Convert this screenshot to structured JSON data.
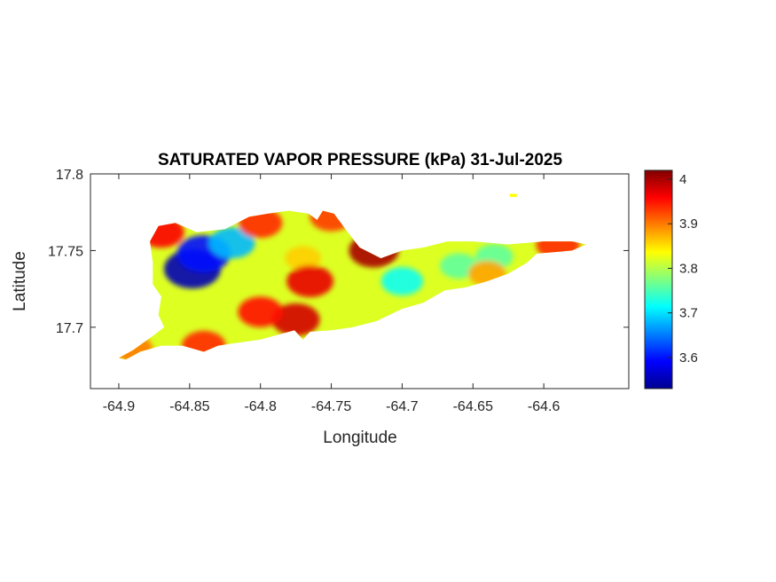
{
  "chart_data": {
    "type": "heatmap",
    "title": "SATURATED VAPOR PRESSURE (kPa) 31-Jul-2025",
    "xlabel": "Longitude",
    "ylabel": "Latitude",
    "xlim": [
      -64.92,
      -64.54
    ],
    "ylim": [
      17.66,
      17.8
    ],
    "x_ticks": [
      -64.9,
      -64.85,
      -64.8,
      -64.75,
      -64.7,
      -64.65,
      -64.6
    ],
    "x_tick_labels": [
      "-64.9",
      "-64.85",
      "-64.8",
      "-64.75",
      "-64.7",
      "-64.65",
      "-64.6"
    ],
    "y_ticks": [
      17.7,
      17.75,
      17.8
    ],
    "y_tick_labels": [
      "17.7",
      "17.75",
      "17.8"
    ],
    "colorbar": {
      "colormap": "jet",
      "range": [
        3.53,
        4.02
      ],
      "ticks": [
        3.6,
        3.7,
        3.8,
        3.9,
        4.0
      ],
      "tick_labels": [
        "3.6",
        "3.7",
        "3.8",
        "3.9",
        "4"
      ]
    },
    "island_outline": [
      [
        -64.9,
        17.68
      ],
      [
        -64.89,
        17.685
      ],
      [
        -64.875,
        17.695
      ],
      [
        -64.868,
        17.7
      ],
      [
        -64.872,
        17.708
      ],
      [
        -64.87,
        17.72
      ],
      [
        -64.876,
        17.728
      ],
      [
        -64.876,
        17.742
      ],
      [
        -64.878,
        17.756
      ],
      [
        -64.872,
        17.766
      ],
      [
        -64.86,
        17.768
      ],
      [
        -64.845,
        17.762
      ],
      [
        -64.825,
        17.764
      ],
      [
        -64.808,
        17.772
      ],
      [
        -64.795,
        17.774
      ],
      [
        -64.78,
        17.776
      ],
      [
        -64.766,
        17.774
      ],
      [
        -64.76,
        17.77
      ],
      [
        -64.756,
        17.776
      ],
      [
        -64.748,
        17.774
      ],
      [
        -64.74,
        17.764
      ],
      [
        -64.73,
        17.752
      ],
      [
        -64.715,
        17.745
      ],
      [
        -64.7,
        17.75
      ],
      [
        -64.685,
        17.752
      ],
      [
        -64.668,
        17.756
      ],
      [
        -64.65,
        17.756
      ],
      [
        -64.625,
        17.754
      ],
      [
        -64.6,
        17.756
      ],
      [
        -64.58,
        17.756
      ],
      [
        -64.57,
        17.754
      ],
      [
        -64.58,
        17.75
      ],
      [
        -64.605,
        17.748
      ],
      [
        -64.612,
        17.742
      ],
      [
        -64.625,
        17.735
      ],
      [
        -64.64,
        17.73
      ],
      [
        -64.655,
        17.726
      ],
      [
        -64.67,
        17.724
      ],
      [
        -64.685,
        17.716
      ],
      [
        -64.7,
        17.712
      ],
      [
        -64.718,
        17.704
      ],
      [
        -64.735,
        17.7
      ],
      [
        -64.75,
        17.698
      ],
      [
        -64.765,
        17.697
      ],
      [
        -64.77,
        17.692
      ],
      [
        -64.776,
        17.698
      ],
      [
        -64.788,
        17.695
      ],
      [
        -64.8,
        17.692
      ],
      [
        -64.815,
        17.69
      ],
      [
        -64.83,
        17.688
      ],
      [
        -64.84,
        17.684
      ],
      [
        -64.855,
        17.688
      ],
      [
        -64.87,
        17.688
      ],
      [
        -64.885,
        17.684
      ],
      [
        -64.895,
        17.679
      ]
    ],
    "islet_outline": [
      [
        -64.624,
        17.787
      ],
      [
        -64.619,
        17.787
      ],
      [
        -64.619,
        17.785
      ],
      [
        -64.624,
        17.785
      ]
    ],
    "field_peaks": [
      {
        "lon": -64.848,
        "lat": 17.738,
        "value": 3.55
      },
      {
        "lon": -64.84,
        "lat": 17.748,
        "value": 3.6
      },
      {
        "lon": -64.82,
        "lat": 17.755,
        "value": 3.68
      },
      {
        "lon": -64.7,
        "lat": 17.73,
        "value": 3.72
      },
      {
        "lon": -64.66,
        "lat": 17.74,
        "value": 3.76
      },
      {
        "lon": -64.635,
        "lat": 17.746,
        "value": 3.76
      },
      {
        "lon": -64.77,
        "lat": 17.745,
        "value": 3.86
      },
      {
        "lon": -64.775,
        "lat": 17.705,
        "value": 3.98
      },
      {
        "lon": -64.8,
        "lat": 17.71,
        "value": 3.95
      },
      {
        "lon": -64.765,
        "lat": 17.73,
        "value": 3.97
      },
      {
        "lon": -64.72,
        "lat": 17.75,
        "value": 4.0
      },
      {
        "lon": -64.87,
        "lat": 17.762,
        "value": 3.96
      },
      {
        "lon": -64.8,
        "lat": 17.768,
        "value": 3.94
      },
      {
        "lon": -64.59,
        "lat": 17.754,
        "value": 3.94
      },
      {
        "lon": -64.84,
        "lat": 17.688,
        "value": 3.94
      },
      {
        "lon": -64.89,
        "lat": 17.686,
        "value": 3.9
      },
      {
        "lon": -64.75,
        "lat": 17.772,
        "value": 3.93
      },
      {
        "lon": -64.64,
        "lat": 17.735,
        "value": 3.88
      }
    ]
  }
}
